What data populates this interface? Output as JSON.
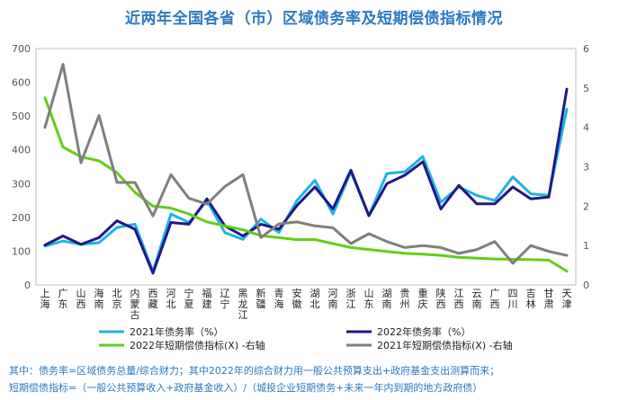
{
  "chart_data": {
    "type": "line",
    "title": "近两年全国各省（市）区域债务率及短期偿债指标情况",
    "categories": [
      "上海",
      "广东",
      "山西",
      "海南",
      "北京",
      "内蒙古",
      "西藏",
      "河北",
      "宁夏",
      "福建",
      "辽宁",
      "黑龙江",
      "新疆",
      "青海",
      "安徽",
      "湖北",
      "河南",
      "浙江",
      "山东",
      "湖南",
      "贵州",
      "重庆",
      "陕西",
      "江西",
      "云南",
      "广西",
      "四川",
      "吉林",
      "甘肃",
      "天津"
    ],
    "y_left": {
      "ticks": [
        0,
        100,
        200,
        300,
        400,
        500,
        600,
        700
      ],
      "ylim": [
        0,
        700
      ]
    },
    "y_right": {
      "ticks": [
        0,
        1,
        2,
        3,
        4,
        5,
        6
      ],
      "ylim": [
        0,
        6
      ]
    },
    "series": [
      {
        "name": "2021年债务率（%）",
        "axis": "left",
        "color": "#1fb3e6",
        "values": [
          115,
          130,
          120,
          125,
          170,
          180,
          40,
          210,
          185,
          250,
          155,
          135,
          195,
          155,
          250,
          310,
          210,
          335,
          205,
          330,
          335,
          380,
          245,
          290,
          265,
          250,
          320,
          270,
          265,
          520
        ]
      },
      {
        "name": "2022年债务率（%）",
        "axis": "left",
        "color": "#1f1887",
        "values": [
          118,
          145,
          120,
          140,
          190,
          165,
          35,
          185,
          180,
          255,
          175,
          145,
          180,
          165,
          235,
          290,
          225,
          340,
          205,
          300,
          325,
          365,
          225,
          295,
          240,
          240,
          290,
          255,
          260,
          580
        ]
      },
      {
        "name": "2022年短期偿债指标(X) -右轴",
        "axis": "right",
        "color": "#66cc1a",
        "values": [
          4.75,
          3.5,
          3.25,
          3.15,
          2.85,
          2.35,
          2.0,
          1.95,
          1.8,
          1.6,
          1.5,
          1.4,
          1.25,
          1.2,
          1.15,
          1.15,
          1.05,
          0.95,
          0.9,
          0.85,
          0.8,
          0.78,
          0.75,
          0.7,
          0.68,
          0.66,
          0.65,
          0.64,
          0.63,
          0.35
        ]
      },
      {
        "name": "2021年短期偿债指标(X) -右轴",
        "axis": "right",
        "color": "#7f7f7f",
        "values": [
          4.0,
          5.6,
          3.1,
          4.3,
          2.6,
          2.6,
          1.75,
          2.8,
          2.2,
          2.05,
          2.5,
          2.8,
          1.2,
          1.55,
          1.6,
          1.5,
          1.45,
          1.05,
          1.3,
          1.1,
          0.95,
          1.0,
          0.95,
          0.8,
          0.9,
          1.1,
          0.55,
          1.0,
          0.85,
          0.75
        ]
      }
    ],
    "legend": [
      {
        "label": "2021年债务率（%）",
        "color": "#1fb3e6"
      },
      {
        "label": "2022年债务率（%）",
        "color": "#1f1887"
      },
      {
        "label": "2022年短期偿债指标(X) -右轴",
        "color": "#66cc1a"
      },
      {
        "label": "2021年短期偿债指标(X) -右轴",
        "color": "#7f7f7f"
      }
    ]
  },
  "footnote": {
    "line1": "其中：债务率=区域债务总量/综合财力；其中2022年的综合财力用一般公共预算支出+政府基金支出测算而来；",
    "line2": "短期偿债指标=（一般公共预算收入+政府基金收入）/（城投企业短期债务+未来一年内到期的地方政府债）"
  }
}
